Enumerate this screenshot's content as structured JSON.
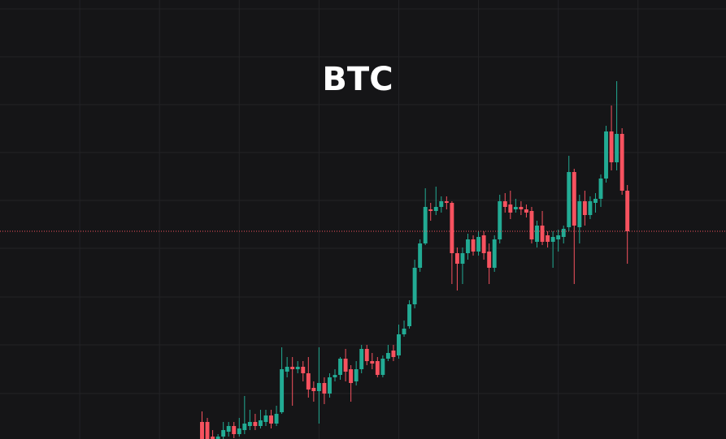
{
  "chart_data": {
    "type": "candlestick",
    "title": "BTC",
    "x": [
      23,
      24,
      25,
      26,
      27,
      28,
      29,
      30,
      31,
      32,
      33,
      34,
      35,
      36,
      37,
      38,
      39,
      40,
      41,
      42,
      43,
      44,
      45,
      46,
      47,
      48,
      49,
      50,
      51,
      52,
      53,
      54,
      55,
      56,
      57,
      58,
      59,
      60,
      61,
      62,
      63,
      64,
      65,
      66,
      67,
      68,
      69,
      70,
      71,
      72,
      73,
      74,
      75,
      76,
      77,
      78,
      79,
      80,
      81,
      82,
      83,
      84,
      85,
      86,
      87,
      88,
      89,
      90,
      91,
      92,
      93,
      94,
      95,
      96,
      97,
      98,
      99,
      100,
      101,
      102,
      103
    ],
    "open": [
      21,
      21,
      3,
      0,
      3,
      9,
      16,
      6,
      11,
      16,
      21,
      16,
      21,
      29,
      19,
      33,
      83,
      89,
      86,
      89,
      81,
      63,
      59,
      69,
      56,
      76,
      79,
      99,
      86,
      71,
      86,
      111,
      96,
      96,
      79,
      99,
      109,
      103,
      129,
      139,
      166,
      211,
      241,
      283,
      281,
      286,
      293,
      291,
      229,
      216,
      229,
      246,
      231,
      251,
      231,
      211,
      246,
      293,
      289,
      283,
      286,
      283,
      281,
      243,
      263,
      251,
      243,
      246,
      249,
      261,
      329,
      261,
      293,
      276,
      291,
      296,
      321,
      379,
      341,
      376,
      306
    ],
    "high": [
      34,
      26,
      11,
      6,
      21,
      21,
      21,
      26,
      53,
      36,
      31,
      36,
      36,
      36,
      41,
      113,
      101,
      101,
      96,
      96,
      101,
      71,
      113,
      76,
      81,
      86,
      101,
      111,
      91,
      96,
      116,
      116,
      106,
      101,
      103,
      116,
      116,
      141,
      146,
      171,
      221,
      246,
      309,
      291,
      311,
      299,
      299,
      293,
      236,
      236,
      253,
      251,
      256,
      256,
      241,
      251,
      301,
      303,
      306,
      296,
      293,
      289,
      286,
      269,
      281,
      256,
      256,
      258,
      263,
      349,
      333,
      301,
      306,
      299,
      303,
      326,
      386,
      411,
      441,
      383,
      313
    ],
    "low": [
      0,
      0,
      0,
      0,
      0,
      3,
      1,
      3,
      6,
      11,
      11,
      13,
      16,
      13,
      16,
      31,
      76,
      41,
      81,
      71,
      51,
      46,
      19,
      43,
      51,
      71,
      73,
      71,
      46,
      66,
      81,
      91,
      86,
      76,
      76,
      96,
      96,
      99,
      126,
      136,
      161,
      206,
      239,
      269,
      276,
      279,
      283,
      191,
      183,
      191,
      221,
      226,
      226,
      221,
      191,
      206,
      241,
      279,
      271,
      279,
      276,
      273,
      241,
      236,
      239,
      236,
      211,
      231,
      241,
      256,
      191,
      241,
      263,
      271,
      279,
      286,
      316,
      331,
      331,
      301,
      216
    ],
    "close": [
      0,
      0,
      0,
      3,
      11,
      16,
      6,
      13,
      19,
      21,
      16,
      23,
      29,
      19,
      31,
      86,
      89,
      86,
      89,
      81,
      61,
      59,
      69,
      56,
      76,
      79,
      99,
      83,
      69,
      86,
      111,
      96,
      93,
      79,
      99,
      106,
      101,
      129,
      136,
      166,
      211,
      241,
      286,
      281,
      286,
      293,
      291,
      229,
      216,
      229,
      246,
      231,
      249,
      229,
      211,
      246,
      293,
      286,
      279,
      286,
      283,
      279,
      246,
      263,
      243,
      243,
      249,
      251,
      259,
      329,
      263,
      293,
      276,
      293,
      296,
      321,
      379,
      341,
      376,
      306,
      256
    ],
    "up_color": "#22ab94",
    "down_color": "#f7525f",
    "last_price": 256,
    "last_price_color": "#f7525f",
    "xlim": [
      -15,
      121.55
    ],
    "xticks": [
      0,
      15,
      30,
      45,
      60,
      75,
      90,
      105
    ],
    "ylim": [
      0,
      541
    ],
    "yticks": [
      56,
      116,
      175,
      235,
      294,
      353,
      412,
      471,
      530
    ],
    "grid": true
  }
}
